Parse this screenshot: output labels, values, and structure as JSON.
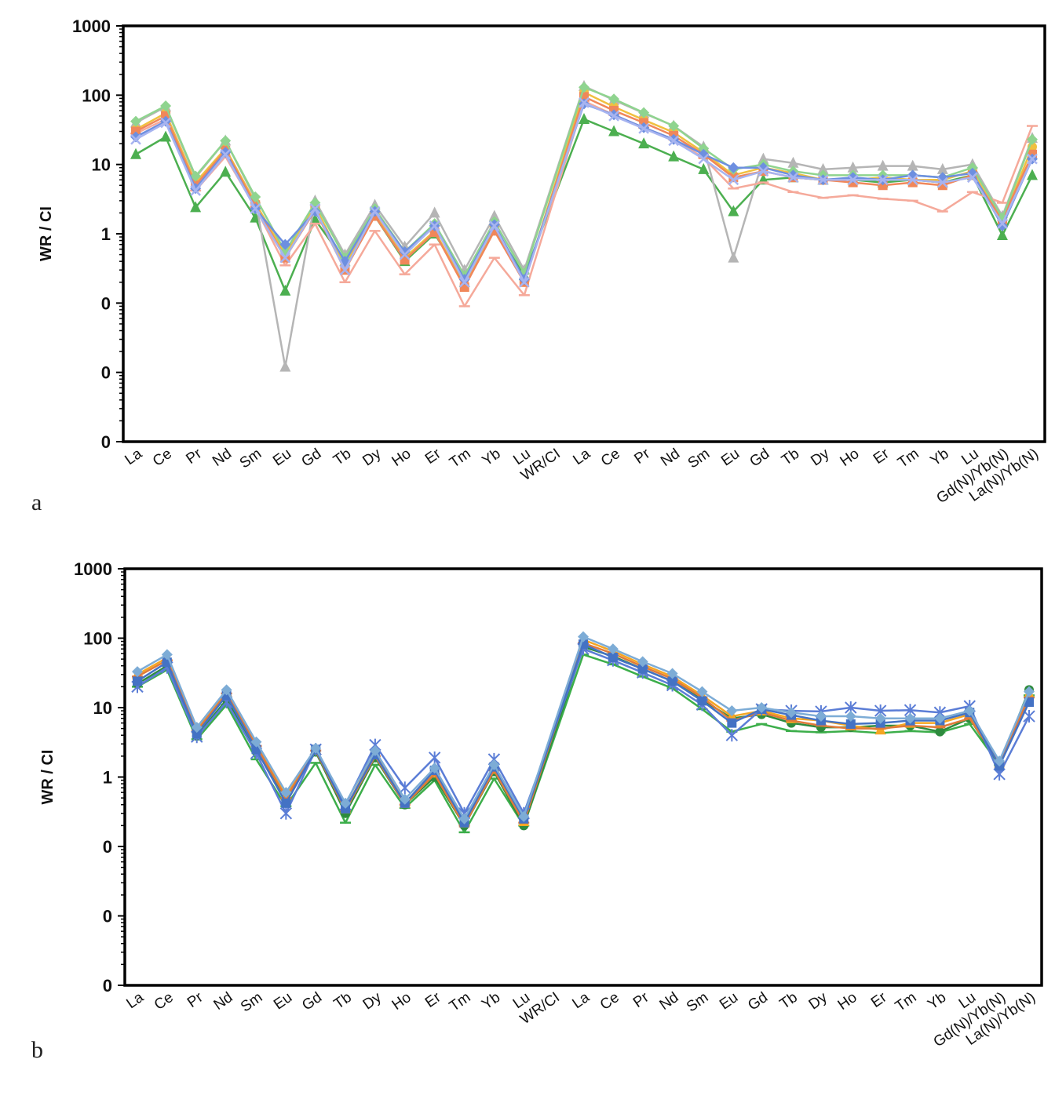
{
  "panels": [
    {
      "id": "a",
      "letter": "a"
    },
    {
      "id": "b",
      "letter": "b"
    }
  ],
  "chart_data": [
    {
      "type": "line",
      "panel": "a",
      "ylabel": "WR / CI",
      "yscale": "log",
      "ylim": [
        0.001,
        1000
      ],
      "ytick_values": [
        0.001,
        0.01,
        0.1,
        1,
        10,
        100,
        1000
      ],
      "ytick_labels": [
        "0",
        "0",
        "0",
        "1",
        "10",
        "100",
        "1000"
      ],
      "categories": [
        "La",
        "Ce",
        "Pr",
        "Nd",
        "Sm",
        "Eu",
        "Gd",
        "Tb",
        "Dy",
        "Ho",
        "Er",
        "Tm",
        "Yb",
        "Lu",
        "WR/CI",
        "La",
        "Ce",
        "Pr",
        "Nd",
        "Sm",
        "Eu",
        "Gd",
        "Tb",
        "Dy",
        "Ho",
        "Er",
        "Tm",
        "Yb",
        "Lu",
        "Gd(N)/Yb(N)",
        "La(N)/Yb(N)"
      ],
      "legend": "none",
      "grid": false,
      "series": [
        {
          "color": "#4caf50",
          "marker": "triangle",
          "values": [
            14,
            25,
            2.4,
            7.8,
            1.7,
            0.15,
            1.6,
            0.4,
            1.8,
            0.4,
            1.0,
            0.2,
            1.2,
            0.25,
            null,
            45,
            30,
            20,
            13,
            8.5,
            2.1,
            6,
            6.5,
            6,
            6,
            5.5,
            6,
            5.5,
            7,
            0.95,
            7
          ]
        },
        {
          "color": "#b5b5b5",
          "marker": "triangle",
          "values": [
            40,
            68,
            6.5,
            22,
            3.2,
            0.012,
            3.0,
            0.5,
            2.6,
            0.65,
            2.0,
            0.3,
            1.8,
            0.3,
            null,
            135,
            85,
            55,
            36,
            18,
            0.45,
            12,
            10.5,
            8.5,
            9,
            9.5,
            9.5,
            8.5,
            10,
            1.8,
            24
          ]
        },
        {
          "color": "#f5a99a",
          "marker": "dash",
          "values": [
            28,
            45,
            4.2,
            13,
            2.4,
            0.35,
            1.4,
            0.2,
            1.1,
            0.26,
            0.7,
            0.09,
            0.45,
            0.13,
            null,
            82,
            52,
            34,
            23,
            12.5,
            4.5,
            5.5,
            4,
            3.3,
            3.6,
            3.2,
            3,
            2.1,
            4,
            2.8,
            36
          ]
        },
        {
          "color": "#f0c040",
          "marker": "circle",
          "values": [
            32,
            55,
            5.5,
            17,
            2.8,
            0.5,
            2.5,
            0.35,
            2.0,
            0.45,
            1.1,
            0.18,
            1.3,
            0.2,
            null,
            110,
            68,
            44,
            29,
            15,
            7,
            9,
            7.5,
            6,
            6,
            6.5,
            6,
            6,
            8,
            1.5,
            18
          ]
        },
        {
          "color": "#f0875a",
          "marker": "square",
          "values": [
            30,
            50,
            5,
            16,
            2.6,
            0.45,
            2.2,
            0.3,
            1.8,
            0.42,
            1.05,
            0.17,
            1.1,
            0.2,
            null,
            95,
            60,
            40,
            26,
            14,
            6.5,
            8,
            6.5,
            6,
            5.5,
            5,
            5.5,
            5,
            7,
            1.6,
            14
          ]
        },
        {
          "color": "#8fd48f",
          "marker": "diamond",
          "values": [
            42,
            70,
            6.8,
            22,
            3.4,
            0.55,
            2.8,
            0.45,
            2.3,
            0.55,
            1.4,
            0.25,
            1.5,
            0.27,
            null,
            130,
            88,
            56,
            36,
            17,
            8.5,
            10,
            8,
            7,
            7,
            7,
            7,
            6.5,
            9,
            1.7,
            23
          ]
        },
        {
          "color": "#6d8fe0",
          "marker": "diamond",
          "values": [
            25,
            42,
            4.5,
            15,
            2.3,
            0.7,
            2.1,
            0.4,
            2.1,
            0.55,
            1.3,
            0.22,
            1.35,
            0.22,
            null,
            75,
            52,
            34,
            23,
            14,
            9,
            9,
            7,
            6,
            6.5,
            6,
            7,
            6.5,
            7.5,
            1.3,
            12
          ]
        },
        {
          "color": "#a7b4f0",
          "marker": "cross",
          "values": [
            23,
            40,
            4.2,
            14,
            2.3,
            0.45,
            2.3,
            0.3,
            2.1,
            0.5,
            1.3,
            0.2,
            1.3,
            0.2,
            null,
            78,
            50,
            33,
            22,
            12,
            6,
            8,
            6.5,
            6,
            6,
            6,
            6,
            5.5,
            6.5,
            1.4,
            12
          ]
        }
      ]
    },
    {
      "type": "line",
      "panel": "b",
      "ylabel": "WR / CI",
      "yscale": "log",
      "ylim": [
        0.001,
        1000
      ],
      "ytick_values": [
        0.001,
        0.01,
        0.1,
        1,
        10,
        100,
        1000
      ],
      "ytick_labels": [
        "0",
        "0",
        "0",
        "1",
        "10",
        "100",
        "1000"
      ],
      "categories": [
        "La",
        "Ce",
        "Pr",
        "Nd",
        "Sm",
        "Eu",
        "Gd",
        "Tb",
        "Dy",
        "Ho",
        "Er",
        "Tm",
        "Yb",
        "Lu",
        "WR/CI",
        "La",
        "Ce",
        "Pr",
        "Nd",
        "Sm",
        "Eu",
        "Gd",
        "Tb",
        "Dy",
        "Ho",
        "Er",
        "Tm",
        "Yb",
        "Lu",
        "Gd(N)/Yb(N)",
        "La(N)/Yb(N)"
      ],
      "legend": "none",
      "grid": false,
      "series": [
        {
          "color": "#3cae4a",
          "marker": "dash",
          "values": [
            20,
            35,
            3.5,
            11,
            1.8,
            0.38,
            1.6,
            0.22,
            1.5,
            0.36,
            0.9,
            0.16,
            0.95,
            0.2,
            null,
            58,
            42,
            28,
            19,
            9.5,
            4.5,
            5.8,
            4.6,
            4.4,
            4.6,
            4.3,
            4.6,
            4.4,
            5.8,
            1.5,
            15
          ]
        },
        {
          "color": "#2e8b3e",
          "marker": "circle",
          "values": [
            22,
            40,
            3.9,
            13,
            2.4,
            0.5,
            2.3,
            0.3,
            1.9,
            0.4,
            1.0,
            0.2,
            1.2,
            0.2,
            null,
            75,
            55,
            36,
            24,
            13,
            7,
            8,
            6,
            5.2,
            5.2,
            5.5,
            5.5,
            4.5,
            7,
            1.5,
            18
          ]
        },
        {
          "color": "#f5a623",
          "marker": "triangle",
          "values": [
            30,
            52,
            5,
            17,
            3.0,
            0.55,
            2.5,
            0.35,
            2.2,
            0.42,
            1.15,
            0.22,
            1.3,
            0.23,
            null,
            95,
            65,
            42,
            28,
            15,
            7.5,
            9,
            7,
            6.5,
            5.5,
            4.8,
            6,
            6,
            8,
            1.6,
            16
          ]
        },
        {
          "color": "#e07a3a",
          "marker": "dash",
          "values": [
            28,
            48,
            4.6,
            16,
            2.8,
            0.5,
            2.4,
            0.33,
            2.0,
            0.4,
            1.1,
            0.2,
            1.25,
            0.22,
            null,
            85,
            60,
            39,
            26,
            14,
            6.5,
            8.5,
            6.5,
            5.5,
            5,
            5,
            5.5,
            5.2,
            7,
            1.6,
            14
          ]
        },
        {
          "color": "#5b7dd6",
          "marker": "star",
          "values": [
            20,
            38,
            3.8,
            12,
            2.2,
            0.3,
            2.5,
            0.4,
            2.9,
            0.7,
            1.9,
            0.3,
            1.8,
            0.3,
            null,
            70,
            48,
            32,
            21,
            11,
            4,
            9.5,
            9,
            8.8,
            10,
            9,
            9.2,
            8.5,
            10.5,
            1.1,
            7.5
          ]
        },
        {
          "color": "#4472c4",
          "marker": "square",
          "values": [
            24,
            45,
            4.2,
            15,
            2.5,
            0.42,
            2.5,
            0.35,
            2.1,
            0.42,
            1.25,
            0.22,
            1.4,
            0.25,
            null,
            82,
            53,
            36,
            24,
            12.5,
            6,
            9.5,
            7.8,
            6.5,
            5.8,
            6,
            6.5,
            6.5,
            8.5,
            1.45,
            12
          ]
        },
        {
          "color": "#7dacd6",
          "marker": "diamond",
          "values": [
            33,
            58,
            5.2,
            18,
            3.2,
            0.6,
            2.6,
            0.42,
            2.4,
            0.48,
            1.35,
            0.25,
            1.5,
            0.27,
            null,
            105,
            70,
            46,
            31,
            17,
            9,
            10,
            8.5,
            7.5,
            7.5,
            7,
            7,
            7,
            9,
            1.7,
            17
          ]
        }
      ]
    }
  ]
}
